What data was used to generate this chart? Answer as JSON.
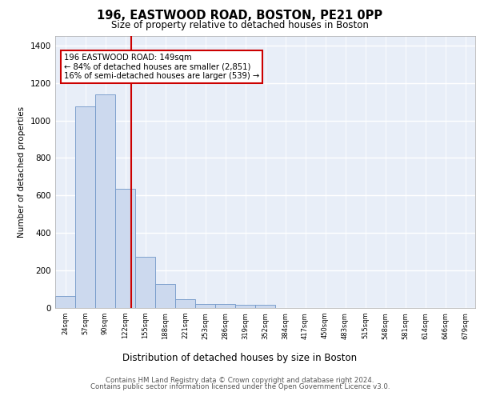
{
  "title_line1": "196, EASTWOOD ROAD, BOSTON, PE21 0PP",
  "title_line2": "Size of property relative to detached houses in Boston",
  "xlabel": "Distribution of detached houses by size in Boston",
  "ylabel": "Number of detached properties",
  "annotation_line1": "196 EASTWOOD ROAD: 149sqm",
  "annotation_line2": "← 84% of detached houses are smaller (2,851)",
  "annotation_line3": "16% of semi-detached houses are larger (539) →",
  "bin_labels": [
    "24sqm",
    "57sqm",
    "90sqm",
    "122sqm",
    "155sqm",
    "188sqm",
    "221sqm",
    "253sqm",
    "286sqm",
    "319sqm",
    "352sqm",
    "384sqm",
    "417sqm",
    "450sqm",
    "483sqm",
    "515sqm",
    "548sqm",
    "581sqm",
    "614sqm",
    "646sqm",
    "679sqm"
  ],
  "bar_heights": [
    65,
    1075,
    1140,
    635,
    275,
    130,
    45,
    20,
    20,
    15,
    15,
    0,
    0,
    0,
    0,
    0,
    0,
    0,
    0,
    0,
    0
  ],
  "bar_color": "#ccd9ee",
  "bar_edge_color": "#7096c8",
  "red_line_color": "#cc0000",
  "ylim": [
    0,
    1450
  ],
  "yticks": [
    0,
    200,
    400,
    600,
    800,
    1000,
    1200,
    1400
  ],
  "background_color": "#e8eef8",
  "grid_color": "#ffffff",
  "footer_line1": "Contains HM Land Registry data © Crown copyright and database right 2024.",
  "footer_line2": "Contains public sector information licensed under the Open Government Licence v3.0."
}
